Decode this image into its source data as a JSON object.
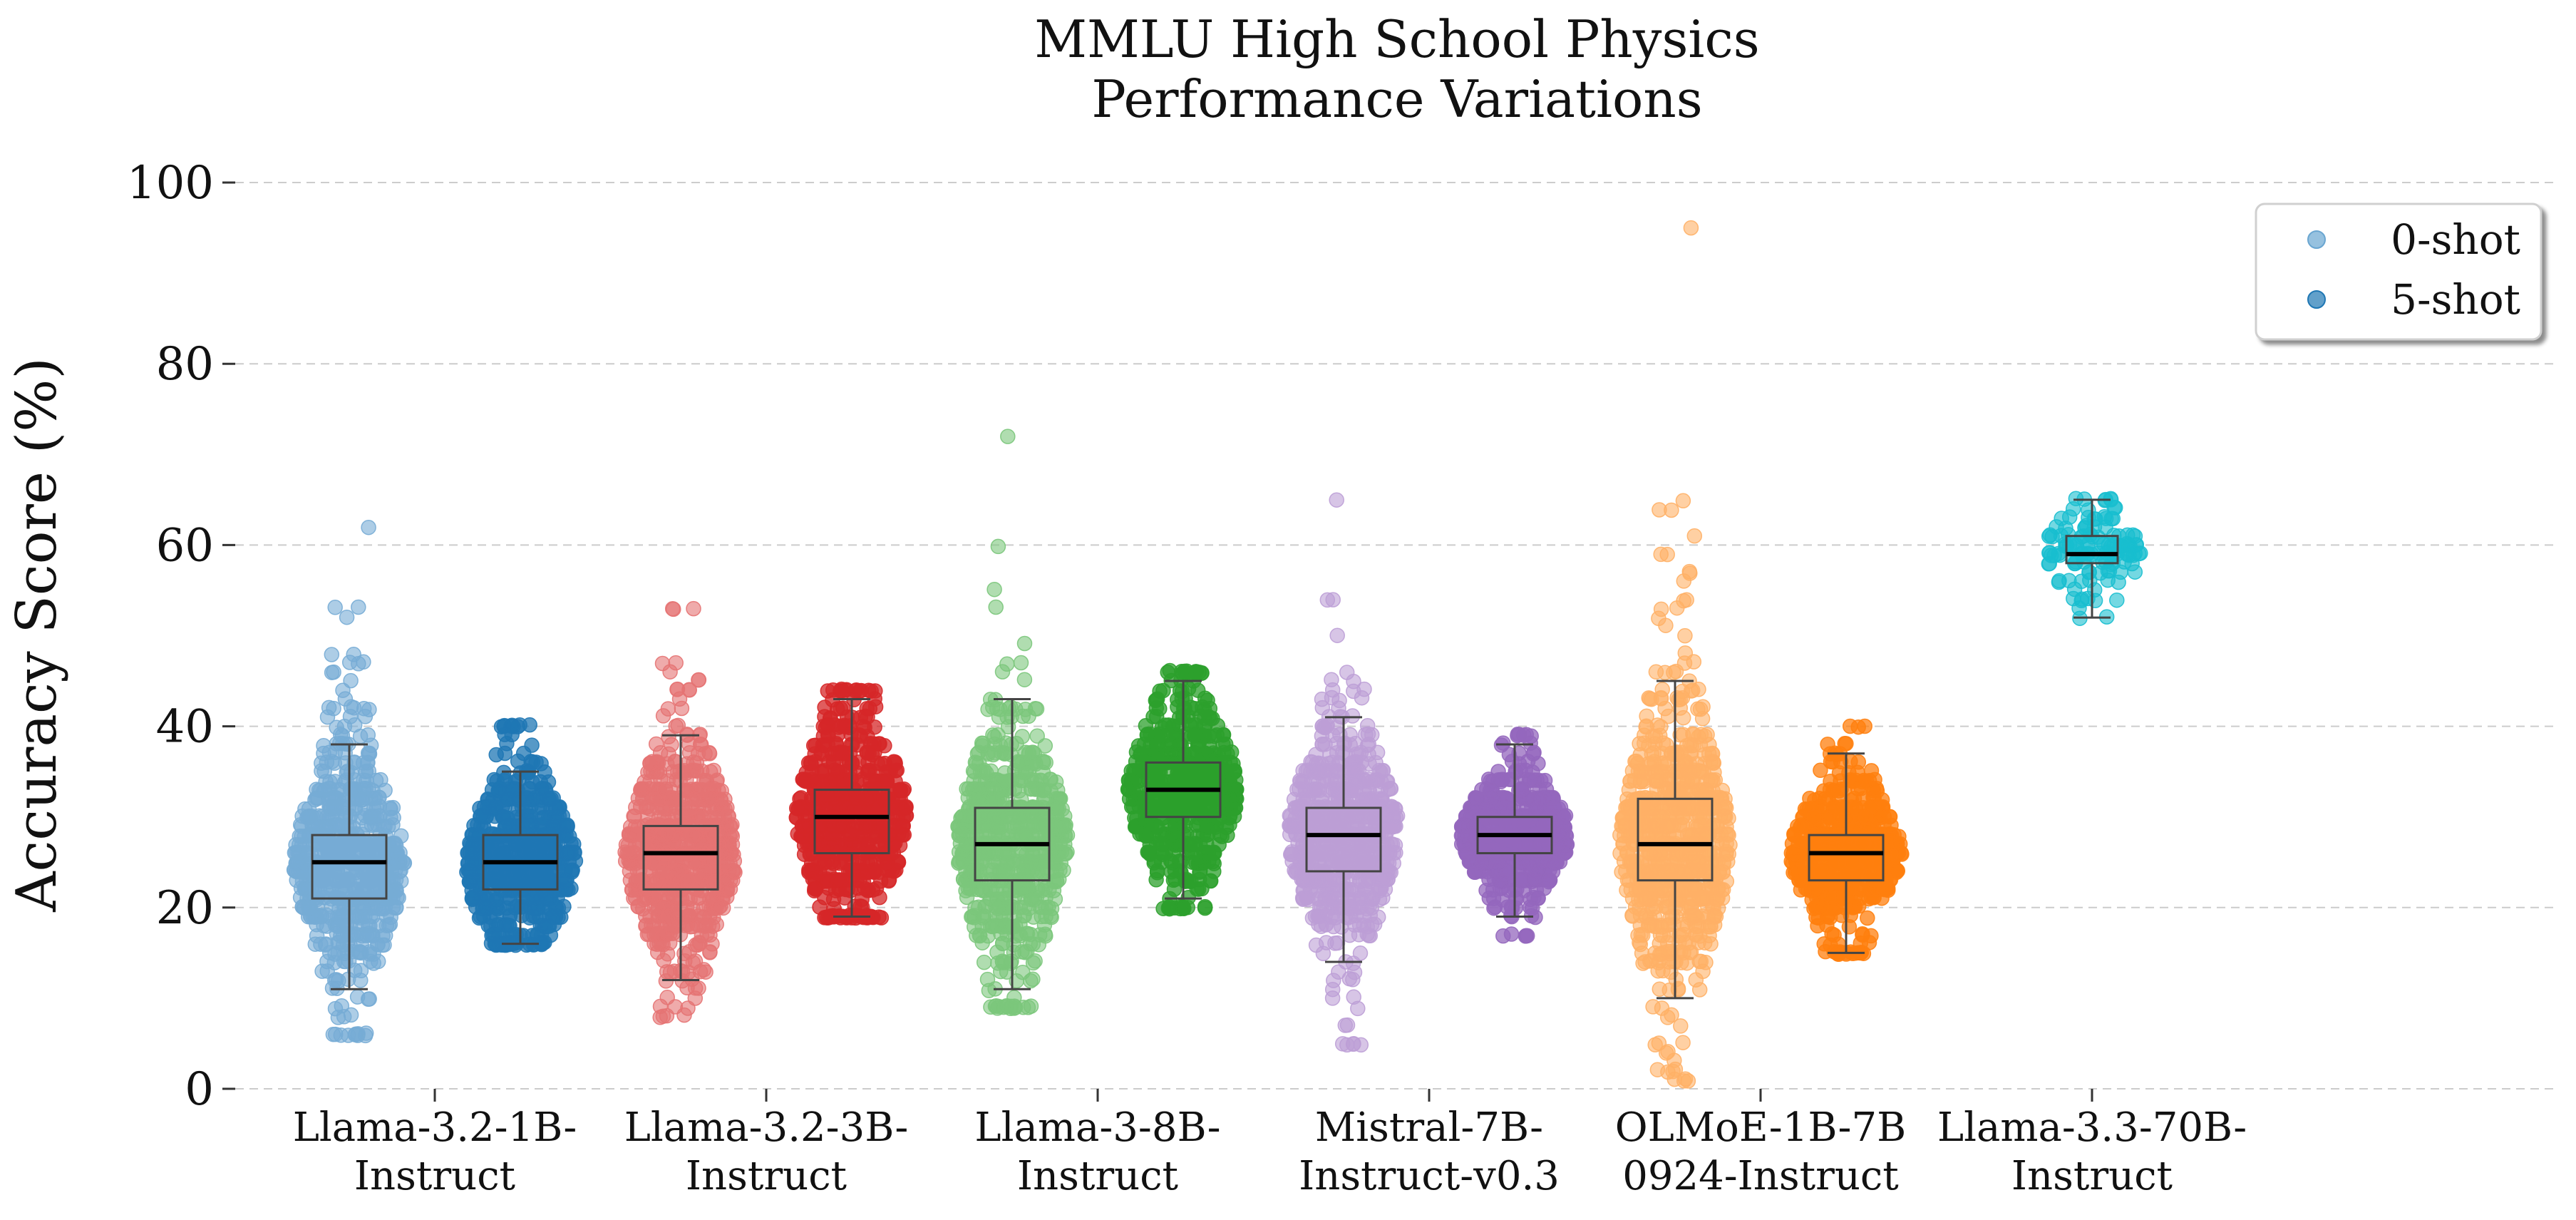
{
  "chart_data": {
    "type": "box-strip",
    "title_lines": [
      "MMLU High School Physics",
      "Performance Variations"
    ],
    "ylabel": "Accuracy Score (%)",
    "xlabel": "",
    "ylim": [
      0,
      100
    ],
    "yticks": [
      0,
      20,
      40,
      60,
      80,
      100
    ],
    "grid": "horizontal dashed",
    "legend": {
      "placement": "top-right",
      "entries": [
        {
          "label": "0-shot",
          "color": "#6aa6d1"
        },
        {
          "label": "5-shot",
          "color": "#1f77b4"
        }
      ]
    },
    "categories": [
      {
        "name": [
          "Llama-3.2-1B-",
          "Instruct"
        ]
      },
      {
        "name": [
          "Llama-3.2-3B-",
          "Instruct"
        ]
      },
      {
        "name": [
          "Llama-3-8B-",
          "Instruct"
        ]
      },
      {
        "name": [
          "Mistral-7B-",
          "Instruct-v0.3"
        ]
      },
      {
        "name": [
          "OLMoE-1B-7B",
          "0924-Instruct"
        ]
      },
      {
        "name": [
          "Llama-3.3-70B-",
          "Instruct"
        ]
      }
    ],
    "series": [
      {
        "category": 0,
        "shot": "0-shot",
        "color": "#77acd5",
        "whisker_low": 11,
        "q1": 21,
        "median": 25,
        "q3": 28,
        "whisker_high": 38,
        "min": 6,
        "max": 62,
        "n": 700
      },
      {
        "category": 0,
        "shot": "5-shot",
        "color": "#1f77b4",
        "whisker_low": 16,
        "q1": 22,
        "median": 25,
        "q3": 28,
        "whisker_high": 35,
        "min": 16,
        "max": 40,
        "n": 600
      },
      {
        "category": 1,
        "shot": "0-shot",
        "color": "#e57373",
        "whisker_low": 12,
        "q1": 22,
        "median": 26,
        "q3": 29,
        "whisker_high": 39,
        "min": 8,
        "max": 53,
        "n": 700
      },
      {
        "category": 1,
        "shot": "5-shot",
        "color": "#d62728",
        "whisker_low": 19,
        "q1": 26,
        "median": 30,
        "q3": 33,
        "whisker_high": 43,
        "min": 19,
        "max": 44,
        "n": 600
      },
      {
        "category": 2,
        "shot": "0-shot",
        "color": "#7bc77b",
        "whisker_low": 11,
        "q1": 23,
        "median": 27,
        "q3": 31,
        "whisker_high": 43,
        "min": 9,
        "max": 72,
        "n": 700
      },
      {
        "category": 2,
        "shot": "5-shot",
        "color": "#2ca02c",
        "whisker_low": 21,
        "q1": 30,
        "median": 33,
        "q3": 36,
        "whisker_high": 45,
        "min": 20,
        "max": 46,
        "n": 600
      },
      {
        "category": 3,
        "shot": "0-shot",
        "color": "#bc9fd6",
        "whisker_low": 14,
        "q1": 24,
        "median": 28,
        "q3": 31,
        "whisker_high": 41,
        "min": 5,
        "max": 65,
        "n": 700
      },
      {
        "category": 3,
        "shot": "5-shot",
        "color": "#9467bd",
        "whisker_low": 19,
        "q1": 26,
        "median": 28,
        "q3": 30,
        "whisker_high": 38,
        "min": 17,
        "max": 39,
        "n": 600
      },
      {
        "category": 4,
        "shot": "0-shot",
        "color": "#ffb066",
        "whisker_low": 10,
        "q1": 23,
        "median": 27,
        "q3": 32,
        "whisker_high": 45,
        "min": 1,
        "max": 95,
        "n": 800
      },
      {
        "category": 4,
        "shot": "5-shot",
        "color": "#ff7f0e",
        "whisker_low": 15,
        "q1": 23,
        "median": 26,
        "q3": 28,
        "whisker_high": 37,
        "min": 15,
        "max": 40,
        "n": 600
      },
      {
        "category": 5,
        "shot": "0-shot",
        "color": "#17becf",
        "whisker_low": 52,
        "q1": 58,
        "median": 59,
        "q3": 61,
        "whisker_high": 65,
        "min": 52,
        "max": 65,
        "n": 120
      }
    ]
  }
}
